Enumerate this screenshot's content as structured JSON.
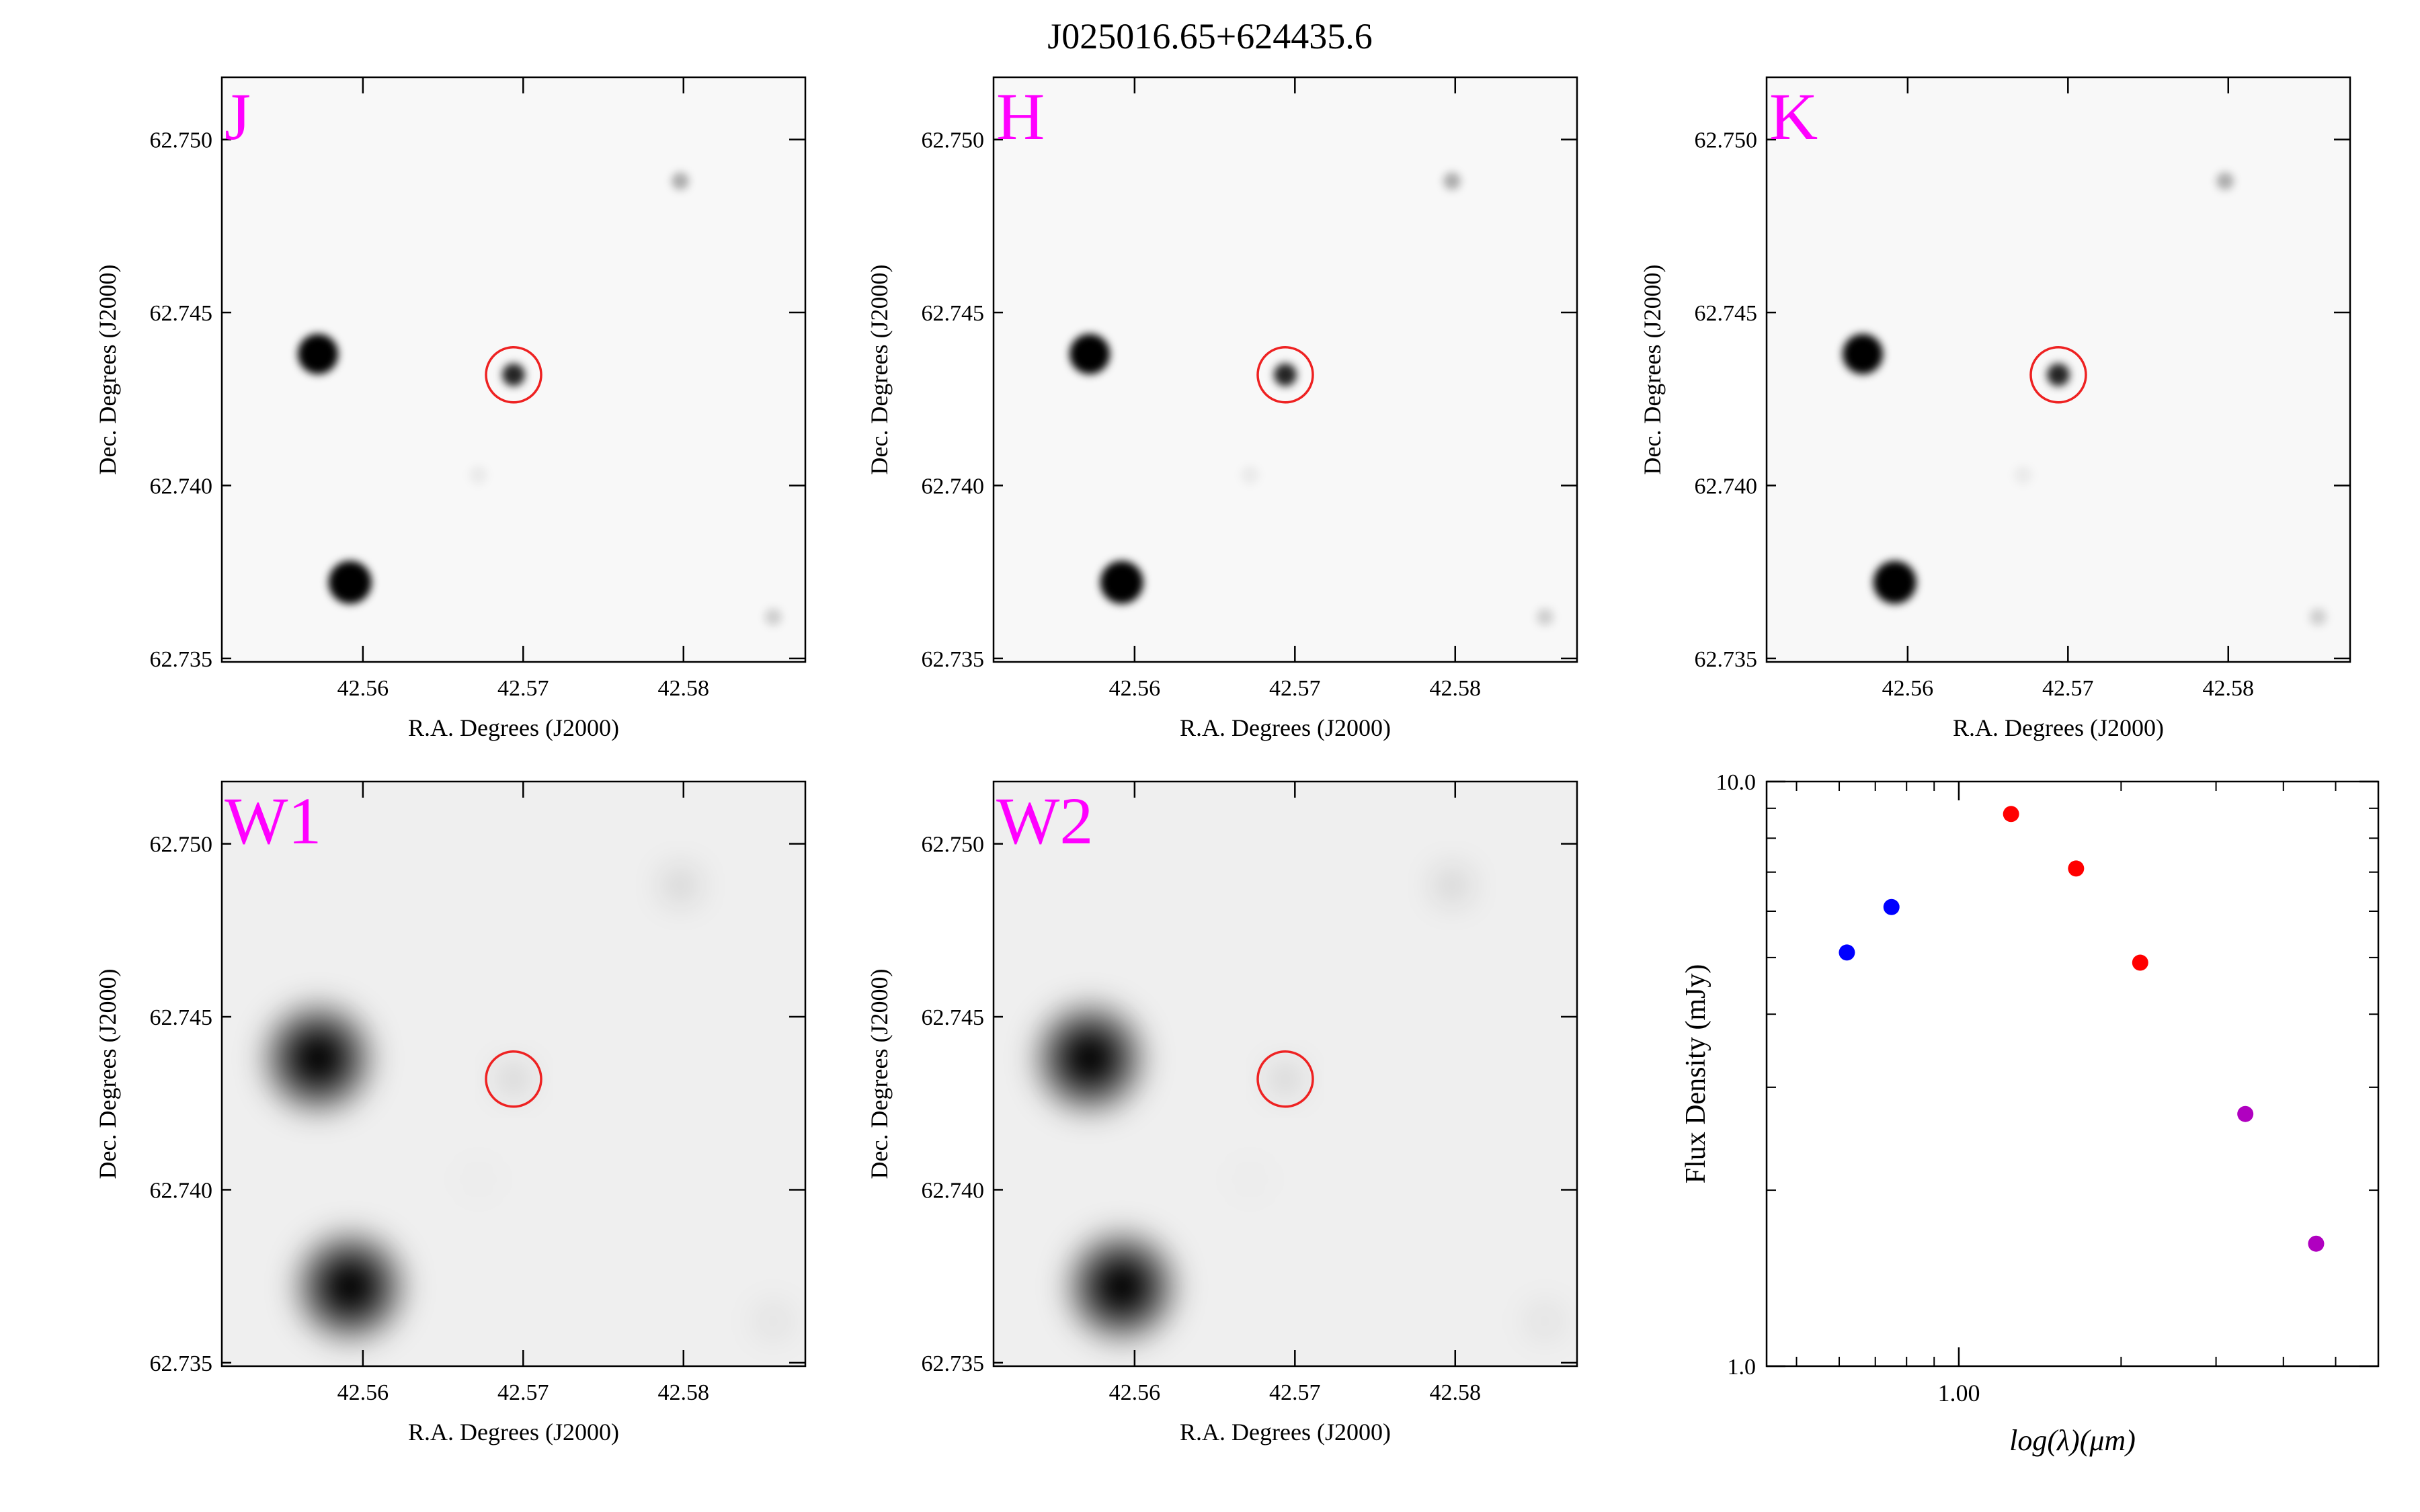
{
  "title": "J025016.65+624435.6",
  "theme": {
    "frame_color": "#000000",
    "marker_color": "#ee2222",
    "band_label_color": "#ff00ff",
    "background": "#ffffff"
  },
  "stamp_axes": {
    "xlabel": "R.A. Degrees (J2000)",
    "ylabel": "Dec. Degrees (J2000)",
    "x_ticks": [
      "42.56",
      "42.57",
      "42.58"
    ],
    "y_ticks": [
      "62.750",
      "62.745",
      "62.740",
      "62.735"
    ]
  },
  "panels": [
    {
      "band": "J",
      "blur": "sharp"
    },
    {
      "band": "H",
      "blur": "sharp"
    },
    {
      "band": "K",
      "blur": "sharp"
    },
    {
      "band": "W1",
      "blur": "wide"
    },
    {
      "band": "W2",
      "blur": "wide"
    }
  ],
  "chart_data": [
    {
      "type": "image",
      "panel": "J",
      "x_range": [
        42.5512,
        42.5876
      ],
      "y_range": [
        62.7349,
        62.7518
      ],
      "xlabel": "R.A. Degrees (J2000)",
      "ylabel": "Dec. Degrees (J2000)",
      "target_marker": {
        "ra": 42.5694,
        "dec": 62.7432
      }
    },
    {
      "type": "image",
      "panel": "H",
      "x_range": [
        42.5512,
        42.5876
      ],
      "y_range": [
        62.7349,
        62.7518
      ],
      "xlabel": "R.A. Degrees (J2000)",
      "ylabel": "Dec. Degrees (J2000)",
      "target_marker": {
        "ra": 42.5694,
        "dec": 62.7432
      }
    },
    {
      "type": "image",
      "panel": "K",
      "x_range": [
        42.5512,
        42.5876
      ],
      "y_range": [
        62.7349,
        62.7518
      ],
      "xlabel": "R.A. Degrees (J2000)",
      "ylabel": "Dec. Degrees (J2000)",
      "target_marker": {
        "ra": 42.5694,
        "dec": 62.7432
      }
    },
    {
      "type": "image",
      "panel": "W1",
      "x_range": [
        42.5512,
        42.5876
      ],
      "y_range": [
        62.7349,
        62.7518
      ],
      "xlabel": "R.A. Degrees (J2000)",
      "ylabel": "Dec. Degrees (J2000)",
      "target_marker": {
        "ra": 42.5694,
        "dec": 62.7432
      }
    },
    {
      "type": "image",
      "panel": "W2",
      "x_range": [
        42.5512,
        42.5876
      ],
      "y_range": [
        62.7349,
        62.7518
      ],
      "xlabel": "R.A. Degrees (J2000)",
      "ylabel": "Dec. Degrees (J2000)",
      "target_marker": {
        "ra": 42.5694,
        "dec": 62.7432
      }
    },
    {
      "type": "scatter",
      "panel": "SED",
      "xlabel": "log(λ)(μm)",
      "ylabel": "Flux Density (mJy)",
      "x_scale": "log",
      "y_scale": "log",
      "xlim": [
        0.44,
        6.0
      ],
      "ylim": [
        1.0,
        10.0
      ],
      "x_tick_labels": [
        "1.00"
      ],
      "y_tick_labels": [
        "10.0",
        "1.0"
      ],
      "series": [
        {
          "color": "#0000ff",
          "x": [
            0.62,
            0.75
          ],
          "y": [
            5.1,
            6.1
          ]
        },
        {
          "color": "#ff0000",
          "x": [
            1.25,
            1.65,
            2.17
          ],
          "y": [
            8.8,
            7.1,
            4.9
          ]
        },
        {
          "color": "#b000c0",
          "x": [
            3.4,
            4.6
          ],
          "y": [
            2.7,
            1.62
          ]
        }
      ]
    }
  ]
}
